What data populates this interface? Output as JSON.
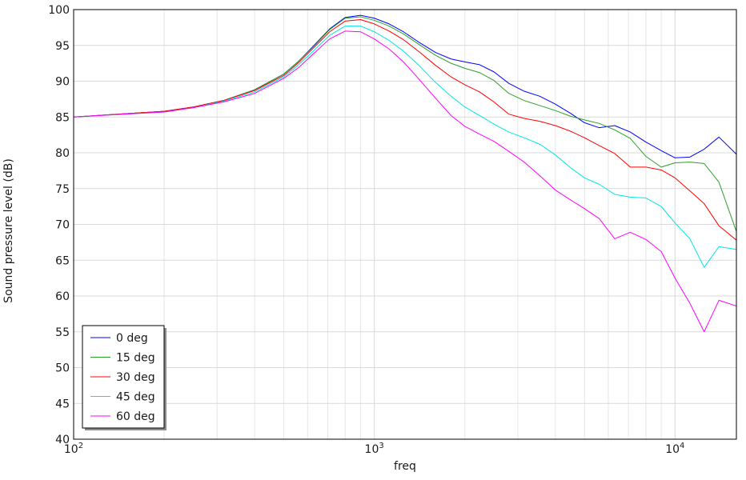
{
  "chart_data": {
    "type": "line",
    "title": "",
    "xlabel": "freq",
    "ylabel": "Sound pressure level (dB)",
    "x_scale": "log",
    "xlim": [
      100,
      16000
    ],
    "ylim": [
      40,
      100
    ],
    "y_ticks": [
      "40",
      "45",
      "50",
      "55",
      "60",
      "65",
      "70",
      "75",
      "80",
      "85",
      "90",
      "95",
      "100"
    ],
    "x_ticks": [
      {
        "base": "10",
        "exp": "2"
      },
      {
        "base": "10",
        "exp": "3"
      },
      {
        "base": "10",
        "exp": "4"
      }
    ],
    "grid": true,
    "legend_position": "bottom-left",
    "x": [
      100,
      200,
      250,
      315,
      400,
      500,
      560,
      630,
      710,
      800,
      900,
      1000,
      1120,
      1250,
      1400,
      1600,
      1800,
      2000,
      2240,
      2500,
      2800,
      3150,
      3550,
      4000,
      4500,
      5000,
      5600,
      6300,
      7100,
      8000,
      9000,
      10000,
      11200,
      12500,
      14000,
      16000
    ],
    "series": [
      {
        "name": "0 deg",
        "color": "#0000ff",
        "values": [
          85.0,
          85.8,
          86.4,
          87.3,
          88.8,
          91.0,
          92.8,
          95.0,
          97.3,
          98.9,
          99.2,
          98.8,
          98.0,
          96.9,
          95.5,
          94.0,
          93.1,
          92.7,
          92.3,
          91.3,
          89.7,
          88.6,
          87.9,
          86.8,
          85.5,
          84.2,
          83.5,
          83.8,
          82.9,
          81.5,
          80.3,
          79.3,
          79.4,
          80.5,
          82.2,
          79.8
        ]
      },
      {
        "name": "15 deg",
        "color": "#2ca02c",
        "values": [
          85.0,
          85.8,
          86.4,
          87.3,
          88.8,
          91.0,
          92.8,
          94.9,
          97.2,
          98.8,
          99.0,
          98.5,
          97.7,
          96.6,
          95.2,
          93.6,
          92.5,
          91.8,
          91.2,
          90.1,
          88.3,
          87.3,
          86.6,
          85.9,
          85.1,
          84.6,
          84.1,
          83.2,
          82.0,
          79.5,
          78.0,
          78.6,
          78.7,
          78.5,
          75.9,
          69.0
        ]
      },
      {
        "name": "30 deg",
        "color": "#ff0000",
        "values": [
          85.0,
          85.8,
          86.4,
          87.3,
          88.7,
          90.8,
          92.6,
          94.7,
          96.9,
          98.4,
          98.6,
          98.0,
          97.0,
          95.8,
          94.2,
          92.2,
          90.6,
          89.5,
          88.5,
          87.1,
          85.4,
          84.8,
          84.4,
          83.8,
          83.0,
          82.1,
          81.0,
          79.9,
          78.0,
          78.0,
          77.6,
          76.5,
          74.7,
          72.9,
          69.8,
          67.8
        ]
      },
      {
        "name": "45 deg",
        "color": "#00e5e5",
        "values": [
          85.0,
          85.7,
          86.3,
          87.2,
          88.5,
          90.6,
          92.3,
          94.3,
          96.4,
          97.7,
          97.7,
          96.9,
          95.7,
          94.2,
          92.3,
          89.8,
          87.9,
          86.4,
          85.2,
          84.0,
          82.9,
          82.1,
          81.2,
          79.7,
          77.9,
          76.5,
          75.6,
          74.2,
          73.8,
          73.7,
          72.5,
          70.2,
          68.0,
          64.0,
          66.9,
          66.5
        ]
      },
      {
        "name": "60 deg",
        "color": "#ff00ff",
        "values": [
          85.0,
          85.7,
          86.3,
          87.1,
          88.3,
          90.4,
          91.9,
          93.9,
          95.9,
          97.0,
          96.9,
          95.9,
          94.5,
          92.7,
          90.4,
          87.6,
          85.2,
          83.7,
          82.6,
          81.6,
          80.2,
          78.7,
          76.8,
          74.8,
          73.4,
          72.2,
          70.8,
          68.0,
          68.9,
          67.9,
          66.2,
          62.5,
          59.0,
          55.0,
          59.4,
          58.6
        ]
      }
    ]
  }
}
